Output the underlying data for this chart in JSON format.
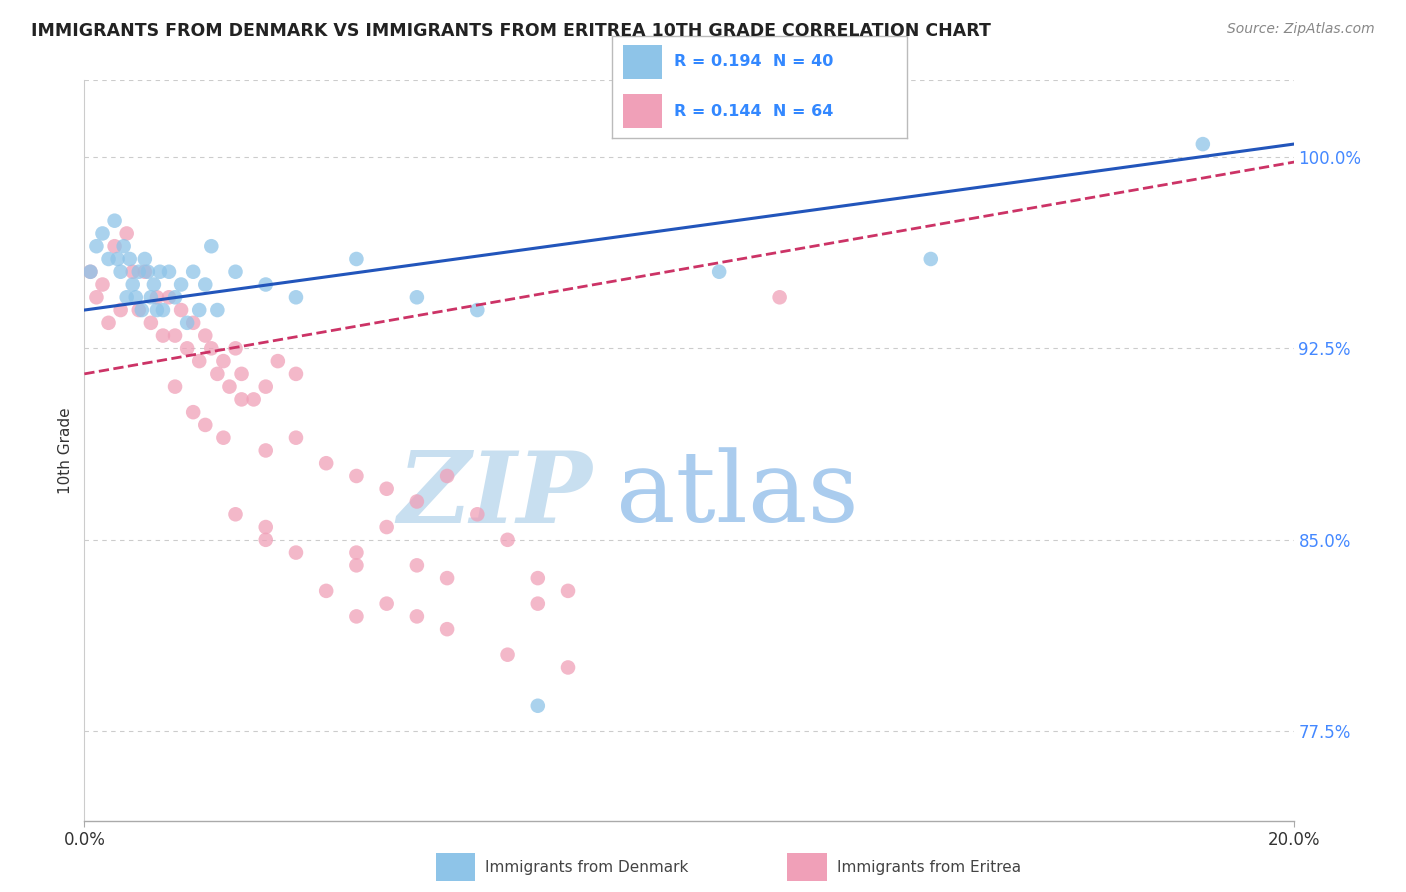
{
  "title": "IMMIGRANTS FROM DENMARK VS IMMIGRANTS FROM ERITREA 10TH GRADE CORRELATION CHART",
  "source": "Source: ZipAtlas.com",
  "ylabel": "10th Grade",
  "xlim": [
    0.0,
    20.0
  ],
  "ylim": [
    74.0,
    103.0
  ],
  "yticks": [
    77.5,
    85.0,
    92.5,
    100.0
  ],
  "ytick_labels": [
    "77.5%",
    "85.0%",
    "92.5%",
    "100.0%"
  ],
  "legend_r1": "R = 0.194",
  "legend_n1": "N = 40",
  "legend_r2": "R = 0.144",
  "legend_n2": "N = 64",
  "color_denmark": "#8ec4e8",
  "color_eritrea": "#f0a0b8",
  "trendline_denmark": "#2255bb",
  "trendline_eritrea": "#cc3366",
  "watermark_zip": "ZIP",
  "watermark_atlas": "atlas",
  "watermark_color_zip": "#c8dff0",
  "watermark_color_atlas": "#aaccee",
  "denmark_x": [
    0.1,
    0.2,
    0.3,
    0.4,
    0.5,
    0.55,
    0.6,
    0.65,
    0.7,
    0.75,
    0.8,
    0.85,
    0.9,
    0.95,
    1.0,
    1.05,
    1.1,
    1.15,
    1.2,
    1.25,
    1.3,
    1.4,
    1.5,
    1.6,
    1.7,
    1.8,
    1.9,
    2.0,
    2.1,
    2.2,
    2.5,
    3.0,
    3.5,
    4.5,
    5.5,
    6.5,
    7.5,
    10.5,
    14.0,
    18.5
  ],
  "denmark_y": [
    95.5,
    96.5,
    97.0,
    96.0,
    97.5,
    96.0,
    95.5,
    96.5,
    94.5,
    96.0,
    95.0,
    94.5,
    95.5,
    94.0,
    96.0,
    95.5,
    94.5,
    95.0,
    94.0,
    95.5,
    94.0,
    95.5,
    94.5,
    95.0,
    93.5,
    95.5,
    94.0,
    95.0,
    96.5,
    94.0,
    95.5,
    95.0,
    94.5,
    96.0,
    94.5,
    94.0,
    78.5,
    95.5,
    96.0,
    100.5
  ],
  "eritrea_x": [
    0.1,
    0.2,
    0.3,
    0.4,
    0.5,
    0.6,
    0.7,
    0.8,
    0.9,
    1.0,
    1.1,
    1.2,
    1.3,
    1.4,
    1.5,
    1.6,
    1.7,
    1.8,
    1.9,
    2.0,
    2.1,
    2.2,
    2.3,
    2.4,
    2.5,
    2.6,
    2.8,
    3.0,
    3.2,
    3.5,
    1.5,
    1.8,
    2.0,
    2.3,
    2.6,
    3.0,
    3.5,
    4.0,
    4.5,
    5.0,
    5.5,
    6.0,
    6.5,
    7.0,
    4.5,
    5.0,
    5.5,
    6.0,
    7.5,
    8.0,
    3.0,
    3.5,
    4.0,
    4.5,
    5.0,
    6.0,
    7.0,
    8.0,
    2.5,
    3.0,
    4.5,
    5.5,
    7.5,
    11.5
  ],
  "eritrea_y": [
    95.5,
    94.5,
    95.0,
    93.5,
    96.5,
    94.0,
    97.0,
    95.5,
    94.0,
    95.5,
    93.5,
    94.5,
    93.0,
    94.5,
    93.0,
    94.0,
    92.5,
    93.5,
    92.0,
    93.0,
    92.5,
    91.5,
    92.0,
    91.0,
    92.5,
    91.5,
    90.5,
    91.0,
    92.0,
    91.5,
    91.0,
    90.0,
    89.5,
    89.0,
    90.5,
    88.5,
    89.0,
    88.0,
    87.5,
    87.0,
    86.5,
    87.5,
    86.0,
    85.0,
    84.5,
    85.5,
    84.0,
    83.5,
    82.5,
    83.0,
    85.0,
    84.5,
    83.0,
    82.0,
    82.5,
    81.5,
    80.5,
    80.0,
    86.0,
    85.5,
    84.0,
    82.0,
    83.5,
    94.5
  ]
}
